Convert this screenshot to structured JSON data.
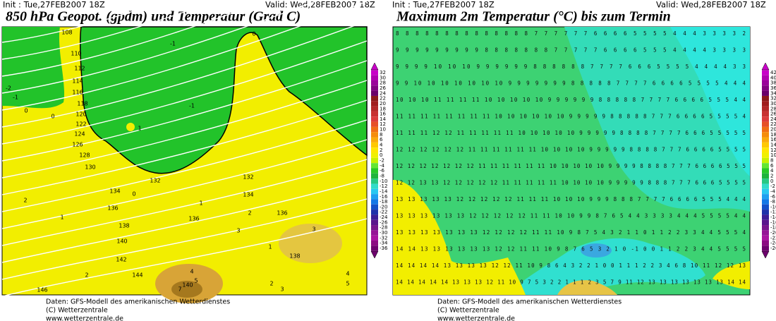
{
  "panels": [
    {
      "init": "Init : Tue,27FEB2007 18Z",
      "valid": "Valid: Wed,28FEB2007 18Z",
      "title": "850 hPa Geopot. (gpdm) und Temperatur (Grad C)",
      "colorbar": [
        32,
        30,
        28,
        26,
        24,
        22,
        20,
        18,
        16,
        14,
        12,
        10,
        8,
        6,
        4,
        2,
        0,
        -2,
        -4,
        -6,
        -8,
        -10,
        -12,
        -14,
        -16,
        -18,
        -20,
        -22,
        -24,
        -26,
        -28,
        -30,
        -32,
        -34,
        -36
      ],
      "contour_labels": [
        "108",
        "110",
        "112",
        "114",
        "116",
        "118",
        "120",
        "122",
        "124",
        "126",
        "128",
        "130",
        "132",
        "132",
        "134",
        "134",
        "136",
        "136",
        "136",
        "138",
        "140",
        "142",
        "144",
        "146",
        "138",
        "140",
        "0",
        "-1",
        "-1",
        "-2",
        "-1",
        "0",
        "0",
        "1",
        "0",
        "2",
        "1",
        "1",
        "2",
        "3",
        "3",
        "1",
        "2",
        "4",
        "5",
        "7",
        "2",
        "3",
        "4",
        "5"
      ],
      "footer": [
        "Daten: GFS-Modell des amerikanischen Wetterdienstes",
        "(C) Wetterzentrale",
        "www.wetterzentrale.de"
      ]
    },
    {
      "init": "Init : Tue,27FEB2007 18Z",
      "valid": "Valid: Wed,28FEB2007 18Z",
      "title": "Maximum 2m Temperatur (°C) bis zum Termin",
      "colorbar": [
        42,
        40,
        38,
        36,
        34,
        32,
        30,
        28,
        26,
        24,
        22,
        20,
        18,
        16,
        14,
        12,
        10,
        8,
        6,
        4,
        2,
        0,
        -2,
        -4,
        -6,
        -8,
        -10,
        -12,
        -14,
        -16,
        -18,
        -20,
        -22,
        -24,
        -26
      ],
      "grid_rows": [
        "8 8 8 8 8 8 8 8 8 8 8 8 8 8 7 7 7 7 7 7 6 6 6 6 5 5 5 5 4 4 4 3 3 3 3 2",
        "9 9 9 9 9 9 9 9 9 8 8 8 8 8 8 8 7 7 7 7 7 6 6 6 6 5 5 5 4 4 4 4 3 3 3 3",
        "9 9 9 9 10 10 10 9 9 9 9 9 9 8 8 8 8 8 8 7 7 7 7 6 6 6 5 5 5 5 4 4 4 4 3 3",
        "9 9 10 10 10 10 10 10 10 9 9 9 9 9 9 9 8 8 8 8 8 7 7 7 7 6 6 6 6 5 5 5 5 4 4 4",
        "10 10 10 11 11 11 11 10 10 10 10 10 9 9 9 9 9 9 8 8 8 8 8 7 7 7 7 6 6 6 6 5 5 5 4 4",
        "11 11 11 11 11 11 11 11 10 10 10 10 10 10 9 9 9 9 9 8 8 8 8 8 7 7 7 6 6 6 6 5 5 5 5 4",
        "11 11 11 12 12 11 11 11 11 11 10 10 10 10 10 9 9 9 9 9 8 8 8 8 7 7 7 7 6 6 6 5 5 5 5 5",
        "12 12 12 12 12 12 11 11 11 11 11 11 10 10 10 10 9 9 9 9 9 8 8 8 8 7 7 7 6 6 6 6 5 5 5 5",
        "12 12 12 12 12 12 12 11 11 11 11 11 11 10 10 10 10 10 9 9 9 9 8 8 8 8 7 7 7 6 6 6 6 5 5 5",
        "12 12 13 13 12 12 12 12 12 11 11 11 11 11 10 10 10 10 9 9 9 9 9 8 8 8 7 7 7 6 6 6 5 5 5 5",
        "13 13 13 13 13 12 12 12 12 12 11 11 11 10 10 10 9 9 9 8 8 8 7 7 7 7 6 6 6 6 5 5 5 4 4 4",
        "13 13 13 13 13 13 12 12 12 12 12 11 11 10 10 9 9 8 7 6 5 4 4 3 3 3 3 4 4 4 5 5 5 5 4 4",
        "13 13 13 13 13 13 13 12 12 12 12 11 11 10 9 8 7 5 4 3 2 1 1 0 1 1 2 2 3 3 4 4 5 5 5 4",
        "14 14 13 13 13 13 13 13 12 12 11 11 10 9 8 7 6 5 3 2 1 0 -1 0 0 1 1 2 2 3 4 4 5 5 5 5",
        "14 14 14 14 13 13 13 13 12 12 11 10 9 8 6 4 3 2 2 1 0 0 1 1 1 2 2 3 4 6 8 10 11 12 12 13",
        "14 14 14 14 14 13 13 13 12 11 10 9 7 5 3 2 2 1 1 1 2 3 5 7 9 11 12 13 13 13 13 13 13 13 14 14"
      ],
      "footer": [
        "Daten: GFS-Modell des amerikanischen Wetterdienstes",
        "(C) Wetterzentrale",
        "www.wetterzentrale.de"
      ]
    }
  ]
}
